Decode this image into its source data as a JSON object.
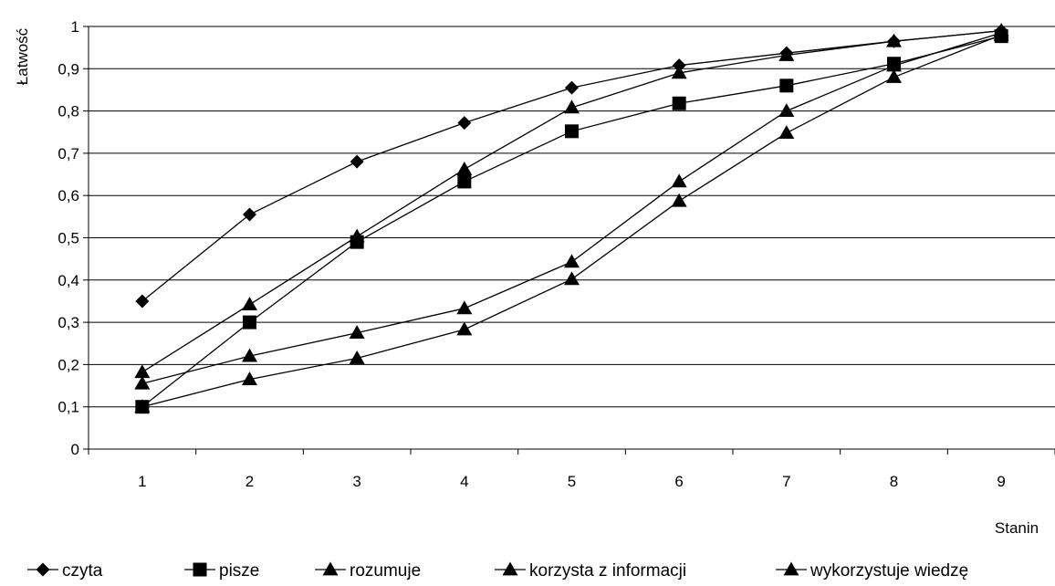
{
  "chart_data": {
    "type": "line",
    "title": "",
    "ylabel": "Łatwość",
    "xlabel": "Stanin",
    "categories": [
      "1",
      "2",
      "3",
      "4",
      "5",
      "6",
      "7",
      "8",
      "9"
    ],
    "ylim": [
      0,
      1
    ],
    "yticks": [
      "0",
      "0,1",
      "0,2",
      "0,3",
      "0,4",
      "0,5",
      "0,6",
      "0,7",
      "0,8",
      "0,9",
      "1"
    ],
    "grid": true,
    "legend_position": "bottom",
    "series": [
      {
        "name": "czyta",
        "marker": "diamond",
        "values": [
          0.35,
          0.555,
          0.68,
          0.772,
          0.855,
          0.908,
          0.937,
          0.965,
          0.99
        ]
      },
      {
        "name": "pisze",
        "marker": "square",
        "values": [
          0.1,
          0.3,
          0.49,
          0.633,
          0.752,
          0.818,
          0.86,
          0.912,
          0.977
        ]
      },
      {
        "name": "rozumuje",
        "marker": "triangle",
        "values": [
          0.182,
          0.342,
          0.503,
          0.662,
          0.808,
          0.89,
          0.932,
          0.965,
          0.99
        ]
      },
      {
        "name": "korzysta z informacji",
        "marker": "triangle",
        "values": [
          0.155,
          0.22,
          0.275,
          0.333,
          0.443,
          0.633,
          0.8,
          0.907,
          0.985
        ]
      },
      {
        "name": "wykorzystuje wiedzę",
        "marker": "triangle",
        "values": [
          0.1,
          0.165,
          0.215,
          0.283,
          0.402,
          0.587,
          0.748,
          0.88,
          0.98
        ]
      }
    ]
  }
}
